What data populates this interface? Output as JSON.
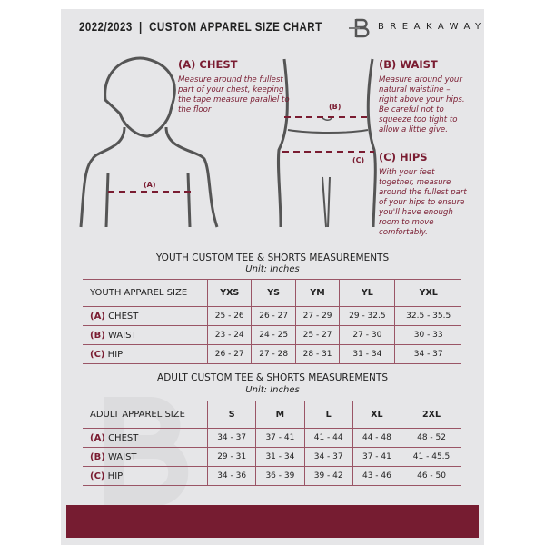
{
  "header": {
    "title": "2022/2023  |  CUSTOM APPAREL SIZE CHART",
    "brand": "BREAKAWAY",
    "logo_letter": "B"
  },
  "measures": {
    "chest": {
      "title": "(A) CHEST",
      "desc": "Measure around the fullest part of your chest, keeping the tape measure parallel to the floor",
      "marker": "(A)"
    },
    "waist": {
      "title": "(B) WAIST",
      "desc": "Measure around your natural waistline – right above your hips. Be careful not to squeeze too tight to allow a little give.",
      "marker": "(B)"
    },
    "hips": {
      "title": "(C) HIPS",
      "desc": "With your feet together, measure around the fullest part of your hips to ensure you'll have enough room to move comfortably.",
      "marker": "(C)"
    }
  },
  "youth": {
    "title": "YOUTH CUSTOM TEE & SHORTS MEASUREMENTS",
    "unit": "Unit: Inches",
    "label": "YOUTH APPAREL SIZE",
    "sizes": [
      "YXS",
      "YS",
      "YM",
      "YL",
      "YXL"
    ],
    "rows": [
      {
        "letter": "(A)",
        "name": "CHEST",
        "values": [
          "25 - 26",
          "26 - 27",
          "27 - 29",
          "29 - 32.5",
          "32.5 - 35.5"
        ]
      },
      {
        "letter": "(B)",
        "name": "WAIST",
        "values": [
          "23 - 24",
          "24 - 25",
          "25 - 27",
          "27 - 30",
          "30 - 33"
        ]
      },
      {
        "letter": "(C)",
        "name": "HIP",
        "values": [
          "26 - 27",
          "27 - 28",
          "28 - 31",
          "31 - 34",
          "34 - 37"
        ]
      }
    ]
  },
  "adult": {
    "title": "ADULT CUSTOM TEE & SHORTS MEASUREMENTS",
    "unit": "Unit: Inches",
    "label": "ADULT APPAREL SIZE",
    "sizes": [
      "S",
      "M",
      "L",
      "XL",
      "2XL"
    ],
    "rows": [
      {
        "letter": "(A)",
        "name": "CHEST",
        "values": [
          "34 - 37",
          "37 - 41",
          "41 - 44",
          "44 - 48",
          "48 - 52"
        ]
      },
      {
        "letter": "(B)",
        "name": "WAIST",
        "values": [
          "29 - 31",
          "31 - 34",
          "34 - 37",
          "37 - 41",
          "41 - 45.5"
        ]
      },
      {
        "letter": "(C)",
        "name": "HIP",
        "values": [
          "34 - 36",
          "36 - 39",
          "39 - 42",
          "43 - 46",
          "46 - 50"
        ]
      }
    ]
  },
  "colors": {
    "accent": "#761c31",
    "page": "#e6e6e8"
  }
}
